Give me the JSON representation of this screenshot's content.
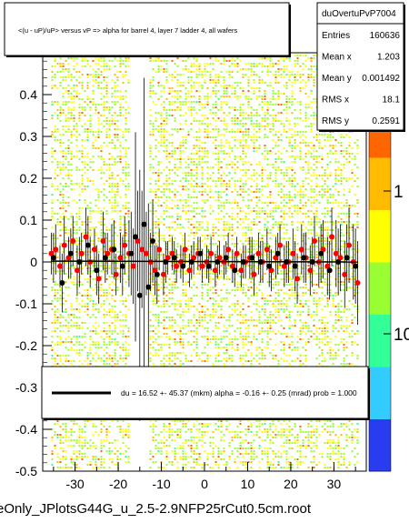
{
  "chart_data": {
    "type": "scatter",
    "title": "<(u - uP)/uP> versus   vP => alpha for barrel 4, layer 7 ladder 4, all wafers",
    "xlabel": "",
    "ylabel": "",
    "xlim": [
      -37.5,
      37.5
    ],
    "ylim": [
      -0.5,
      0.5
    ],
    "x_ticks": [
      "-30",
      "-20",
      "-10",
      "0",
      "10",
      "20",
      "30"
    ],
    "y_ticks": [
      "-0.5",
      "-0.4",
      "-0.3",
      "-0.2",
      "-0.1",
      "0",
      "0.1",
      "0.2",
      "0.3",
      "0.4"
    ],
    "z_scale": "log",
    "z_ticks": [
      "1",
      "10"
    ],
    "palette": [
      "#2a3cf0",
      "#33ccff",
      "#33ff99",
      "#99ff33",
      "#ffff00",
      "#ffbb00",
      "#ff6600",
      "#ff0000"
    ],
    "stats": {
      "name": "duOvertuPvP7004",
      "rows": [
        {
          "label": "Entries",
          "value": "160636"
        },
        {
          "label": "Mean x",
          "value": "1.203"
        },
        {
          "label": "Mean y",
          "value": "0.001492"
        },
        {
          "label": "RMS x",
          "value": "18.1"
        },
        {
          "label": "RMS y",
          "value": "0.2591"
        }
      ]
    },
    "fit_legend": "du =    16.52 +- 45.37 (mkm) alpha =    -0.16 +-   0.25 (mrad) prob = 1.000",
    "series": [
      {
        "color": "#ff0000",
        "x": [
          -35.5,
          -34.5,
          -33.5,
          -32.5,
          -31.5,
          -30.5,
          -29.5,
          -28.5,
          -27.5,
          -26.5,
          -25.5,
          -24.5,
          -23.5,
          -22.5,
          -21.5,
          -20.5,
          -19.5,
          -18.5,
          -17.5,
          -16.5,
          -15.5,
          -14.5,
          -13.5,
          -12.5,
          -11.5,
          -10.5,
          -9.5,
          -8.5,
          -7.5,
          -6.5,
          -5.5,
          -4.5,
          -3.5,
          -2.5,
          -1.5,
          -0.5,
          0.5,
          1.5,
          2.5,
          3.5,
          4.5,
          5.5,
          6.5,
          7.5,
          8.5,
          9.5,
          10.5,
          11.5,
          12.5,
          13.5,
          14.5,
          15.5,
          16.5,
          17.5,
          18.5,
          19.5,
          20.5,
          21.5,
          22.5,
          23.5,
          24.5,
          25.5,
          26.5,
          27.5,
          28.5,
          29.5,
          30.5,
          31.5,
          32.5,
          33.5,
          34.5,
          35.5
        ],
        "y": [
          0.02,
          0.03,
          -0.01,
          0.04,
          0.01,
          0.05,
          -0.02,
          0.02,
          0.06,
          0.0,
          0.03,
          -0.04,
          0.05,
          0.02,
          0.03,
          -0.03,
          0.01,
          0.04,
          0.02,
          -0.01,
          0.05,
          0.03,
          0.02,
          0.0,
          -0.02,
          0.03,
          -0.03,
          0.01,
          0.02,
          -0.01,
          0.0,
          0.03,
          -0.02,
          0.01,
          0.02,
          -0.01,
          0.0,
          0.02,
          -0.02,
          0.01,
          0.0,
          0.03,
          -0.01,
          0.02,
          -0.02,
          0.0,
          0.01,
          -0.03,
          0.02,
          0.0,
          0.03,
          -0.02,
          0.01,
          0.04,
          -0.01,
          0.0,
          0.02,
          -0.04,
          0.03,
          0.01,
          -0.02,
          0.05,
          0.0,
          0.03,
          -0.01,
          0.06,
          0.02,
          0.01,
          -0.03,
          0.04,
          0.0,
          -0.05
        ],
        "err": [
          0.05,
          0.06,
          0.05,
          0.07,
          0.05,
          0.06,
          0.06,
          0.05,
          0.07,
          0.06,
          0.05,
          0.06,
          0.07,
          0.05,
          0.06,
          0.05,
          0.06,
          0.07,
          0.08,
          0.09,
          0.12,
          0.14,
          0.1,
          0.07,
          0.06,
          0.05,
          0.05,
          0.04,
          0.04,
          0.04,
          0.04,
          0.04,
          0.04,
          0.04,
          0.04,
          0.04,
          0.04,
          0.04,
          0.04,
          0.04,
          0.04,
          0.04,
          0.04,
          0.04,
          0.04,
          0.04,
          0.05,
          0.05,
          0.05,
          0.05,
          0.05,
          0.05,
          0.05,
          0.05,
          0.05,
          0.05,
          0.06,
          0.06,
          0.06,
          0.06,
          0.06,
          0.06,
          0.06,
          0.07,
          0.07,
          0.07,
          0.08,
          0.08,
          0.08,
          0.09,
          0.09,
          0.1
        ]
      },
      {
        "color": "#000000",
        "x": [
          -35,
          -33,
          -31,
          -29,
          -27,
          -25,
          -23,
          -21,
          -19,
          -17,
          -16,
          -15,
          -14,
          -13,
          -12,
          -11,
          -9,
          -7,
          -5,
          -3,
          -1,
          1,
          3,
          5,
          7,
          9,
          11,
          13,
          15,
          17,
          19,
          21,
          23,
          25,
          27,
          29,
          31,
          33,
          35
        ],
        "y": [
          0.01,
          -0.05,
          0.02,
          0.0,
          0.04,
          -0.02,
          0.01,
          0.03,
          -0.01,
          0.02,
          0.06,
          -0.08,
          0.09,
          -0.06,
          0.05,
          -0.03,
          0.0,
          0.01,
          -0.01,
          0.0,
          0.02,
          -0.01,
          0.0,
          0.01,
          -0.02,
          0.0,
          0.01,
          0.0,
          -0.01,
          0.02,
          0.0,
          -0.01,
          0.01,
          0.0,
          0.02,
          -0.02,
          0.0,
          0.01,
          -0.01
        ],
        "err": [
          0.06,
          0.07,
          0.06,
          0.06,
          0.07,
          0.06,
          0.06,
          0.07,
          0.07,
          0.1,
          0.25,
          0.3,
          0.35,
          0.2,
          0.1,
          0.07,
          0.05,
          0.04,
          0.04,
          0.04,
          0.04,
          0.04,
          0.04,
          0.04,
          0.04,
          0.04,
          0.05,
          0.05,
          0.05,
          0.05,
          0.05,
          0.06,
          0.06,
          0.06,
          0.07,
          0.07,
          0.08,
          0.08,
          0.09
        ]
      }
    ]
  },
  "footer": "eOnly_JPlotsG44G_u_2.5-2.9NFP25rCut0.5cm.root"
}
